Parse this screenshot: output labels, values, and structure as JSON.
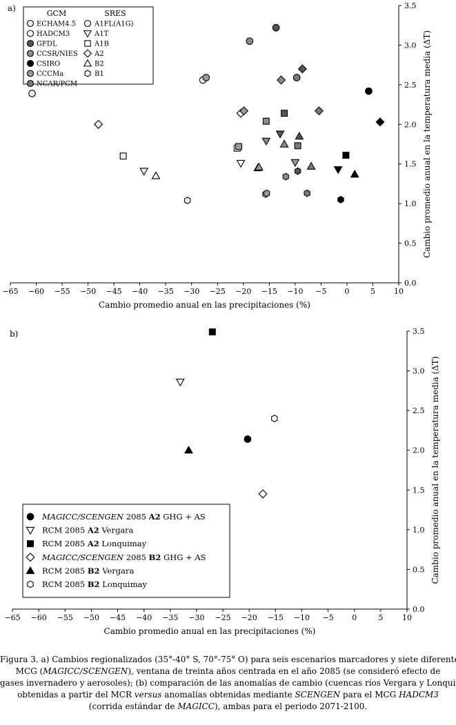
{
  "chart_data": [
    {
      "type": "scatter",
      "panel_label": "a)",
      "xlabel": "Cambio promedio anual en las precipitaciones (%)",
      "ylabel": "Cambio promedio anual en la temperatura media (ΔT)",
      "xlim": [
        -65,
        10
      ],
      "ylim": [
        0,
        3.5
      ],
      "xticks": [
        "−65",
        "−60",
        "−55",
        "−50",
        "−45",
        "−40",
        "−35",
        "−30",
        "−25",
        "−20",
        "−15",
        "−10",
        "−5",
        "0",
        "5",
        "10"
      ],
      "yticks": [
        "0.0",
        "0.5",
        "1.0",
        "1.5",
        "2.0",
        "2.5",
        "3.0",
        "3.5"
      ],
      "legend": {
        "gcm_title": "GCM",
        "sres_title": "SRES",
        "gcm": [
          {
            "name": "ECHAM4.5",
            "color": "#eeeeee"
          },
          {
            "name": "HADCM3",
            "color": "#ffffff"
          },
          {
            "name": "GFDL",
            "color": "#555555"
          },
          {
            "name": "CCSR/NIES",
            "color": "#8c8c8c"
          },
          {
            "name": "CSIRO",
            "color": "#000000"
          },
          {
            "name": "CCCMa",
            "color": "#9a9a9a"
          },
          {
            "name": "NCAR/PCM",
            "color": "#7a7a7a"
          }
        ],
        "sres": [
          {
            "name": "A1FL(A1G)",
            "shape": "circle"
          },
          {
            "name": "A1T",
            "shape": "triangle-down"
          },
          {
            "name": "A1B",
            "shape": "square"
          },
          {
            "name": "A2",
            "shape": "diamond"
          },
          {
            "name": "B2",
            "shape": "triangle-up"
          },
          {
            "name": "B1",
            "shape": "hexagon"
          }
        ]
      },
      "series": [
        {
          "name": "ECHAM4.5",
          "points": [
            {
              "x": -60.8,
              "y": 2.39,
              "shape": "circle"
            },
            {
              "x": -39.2,
              "y": 1.41,
              "shape": "triangle-down"
            },
            {
              "x": -43.2,
              "y": 1.6,
              "shape": "square"
            },
            {
              "x": -48.0,
              "y": 2.0,
              "shape": "diamond"
            },
            {
              "x": -36.9,
              "y": 1.35,
              "shape": "triangle-up"
            },
            {
              "x": -30.8,
              "y": 1.04,
              "shape": "hexagon"
            }
          ]
        },
        {
          "name": "HADCM3",
          "points": [
            {
              "x": -27.8,
              "y": 2.56,
              "shape": "circle"
            },
            {
              "x": -20.5,
              "y": 1.51,
              "shape": "triangle-down"
            },
            {
              "x": -21.2,
              "y": 1.7,
              "shape": "square"
            },
            {
              "x": -20.5,
              "y": 2.14,
              "shape": "diamond"
            },
            {
              "x": -17.2,
              "y": 1.45,
              "shape": "triangle-up"
            },
            {
              "x": -15.7,
              "y": 1.12,
              "shape": "hexagon"
            }
          ]
        },
        {
          "name": "GFDL",
          "points": [
            {
              "x": -13.7,
              "y": 3.22,
              "shape": "circle"
            },
            {
              "x": -12.9,
              "y": 1.88,
              "shape": "triangle-down"
            },
            {
              "x": -12.1,
              "y": 2.14,
              "shape": "square"
            },
            {
              "x": -8.6,
              "y": 2.7,
              "shape": "diamond"
            },
            {
              "x": -9.2,
              "y": 1.85,
              "shape": "triangle-up"
            },
            {
              "x": -9.5,
              "y": 1.41,
              "shape": "hexagon"
            }
          ]
        },
        {
          "name": "CCSR/NIES",
          "points": [
            {
              "x": -18.8,
              "y": 3.05,
              "shape": "circle"
            },
            {
              "x": -15.6,
              "y": 1.79,
              "shape": "triangle-down"
            },
            {
              "x": -15.6,
              "y": 2.04,
              "shape": "square"
            },
            {
              "x": -12.7,
              "y": 2.56,
              "shape": "diamond"
            },
            {
              "x": -12.1,
              "y": 1.75,
              "shape": "triangle-up"
            },
            {
              "x": -11.8,
              "y": 1.34,
              "shape": "hexagon"
            }
          ]
        },
        {
          "name": "CSIRO",
          "points": [
            {
              "x": 4.2,
              "y": 2.42,
              "shape": "circle"
            },
            {
              "x": -1.7,
              "y": 1.43,
              "shape": "triangle-down"
            },
            {
              "x": -0.2,
              "y": 1.61,
              "shape": "square"
            },
            {
              "x": 6.4,
              "y": 2.03,
              "shape": "diamond"
            },
            {
              "x": 1.5,
              "y": 1.37,
              "shape": "triangle-up"
            },
            {
              "x": -1.2,
              "y": 1.05,
              "shape": "hexagon"
            }
          ]
        },
        {
          "name": "CCCMa",
          "points": [
            {
              "x": -27.2,
              "y": 2.59,
              "shape": "circle"
            },
            {
              "x": -10.0,
              "y": 1.52,
              "shape": "triangle-down"
            },
            {
              "x": -20.9,
              "y": 1.72,
              "shape": "square"
            },
            {
              "x": -19.9,
              "y": 2.17,
              "shape": "diamond"
            },
            {
              "x": -17.0,
              "y": 1.46,
              "shape": "triangle-up"
            },
            {
              "x": -15.5,
              "y": 1.13,
              "shape": "hexagon"
            }
          ]
        },
        {
          "name": "NCAR/PCM",
          "points": [
            {
              "x": -9.7,
              "y": 2.59,
              "shape": "circle"
            },
            {
              "x": -6.9,
              "y": 1.47,
              "shape": "triangle-up"
            },
            {
              "x": -9.5,
              "y": 1.73,
              "shape": "square"
            },
            {
              "x": -5.4,
              "y": 2.17,
              "shape": "diamond"
            },
            {
              "x": -7.7,
              "y": 1.13,
              "shape": "hexagon"
            }
          ]
        }
      ]
    },
    {
      "type": "scatter",
      "panel_label": "b)",
      "xlabel": "Cambio promedio anual en las precipitaciones (%)",
      "ylabel": "Cambio promedio anual en la temperatura media (ΔT)",
      "xlim": [
        -65,
        10
      ],
      "ylim": [
        0,
        3.5
      ],
      "xticks": [
        "−65",
        "−60",
        "−55",
        "−50",
        "−45",
        "−40",
        "−35",
        "−30",
        "−25",
        "−20",
        "−15",
        "−10",
        "−5",
        "0",
        "5",
        "10"
      ],
      "yticks": [
        "0.0",
        "0.5",
        "1.0",
        "1.5",
        "2.0",
        "2.5",
        "3.0",
        "3.5"
      ],
      "legend_position": "bottom-left",
      "series": [
        {
          "name": "MAGICC/SCENGEN 2085 A2 GHG + AS",
          "label_parts": [
            {
              "t": "MAGICC/SCENGEN",
              "s": "i"
            },
            {
              "t": " 2085 "
            },
            {
              "t": "A2",
              "s": "b"
            },
            {
              "t": " GHG + AS"
            }
          ],
          "shape": "circle",
          "fill": "#000000",
          "points": [
            {
              "x": -20.3,
              "y": 2.14
            }
          ]
        },
        {
          "name": "RCM 2085 A2 Vergara",
          "label_parts": [
            {
              "t": "RCM 2085 "
            },
            {
              "t": "A2",
              "s": "b"
            },
            {
              "t": " Vergara"
            }
          ],
          "shape": "triangle-down",
          "fill": "#ffffff",
          "points": [
            {
              "x": -33.1,
              "y": 2.86
            }
          ]
        },
        {
          "name": "RCM 2085 A2 Lonquimay",
          "label_parts": [
            {
              "t": "RCM 2085 "
            },
            {
              "t": "A2",
              "s": "b"
            },
            {
              "t": " Lonquimay"
            }
          ],
          "shape": "square",
          "fill": "#000000",
          "points": [
            {
              "x": -27.0,
              "y": 3.49
            }
          ]
        },
        {
          "name": "MAGICC/SCENGEN 2085 B2 GHG + AS",
          "label_parts": [
            {
              "t": "MAGICC/SCENGEN",
              "s": "i"
            },
            {
              "t": " 2085 "
            },
            {
              "t": "B2",
              "s": "b"
            },
            {
              "t": " GHG + AS"
            }
          ],
          "shape": "diamond",
          "fill": "#ffffff",
          "points": [
            {
              "x": -17.4,
              "y": 1.45
            }
          ]
        },
        {
          "name": "RCM 2085 B2 Vergara",
          "label_parts": [
            {
              "t": "RCM 2085 "
            },
            {
              "t": "B2",
              "s": "b"
            },
            {
              "t": " Vergara"
            }
          ],
          "shape": "triangle-up",
          "fill": "#000000",
          "points": [
            {
              "x": -31.5,
              "y": 2.0
            }
          ]
        },
        {
          "name": "RCM 2085 B2 Lonquimay",
          "label_parts": [
            {
              "t": "RCM 2085 "
            },
            {
              "t": "B2",
              "s": "b"
            },
            {
              "t": " Lonquimay"
            }
          ],
          "shape": "hexagon",
          "fill": "#ffffff",
          "points": [
            {
              "x": -15.2,
              "y": 2.4
            }
          ]
        }
      ]
    }
  ],
  "caption": {
    "line1": "Figura 3. a) Cambios regionalizados (35°-40° S, 70°-75° O) para seis escenarios marcadores y siete diferentes",
    "line2_parts": [
      {
        "t": "MCG ("
      },
      {
        "t": "MAGICC/SCENGEN",
        "s": "i"
      },
      {
        "t": "), ventana de treinta años centrada en el año 2085 (se consideró efecto de"
      }
    ],
    "line3": "gases invernadero y aerosoles); (b) comparación de las anomalías de cambio (cuencas ríos Vergara y Lonquimay)",
    "line4_parts": [
      {
        "t": "obtenidas a partir del MCR "
      },
      {
        "t": "versus",
        "s": "i"
      },
      {
        "t": " anomalías obtenidas mediante "
      },
      {
        "t": "SCENGEN",
        "s": "i"
      },
      {
        "t": " para el MCG "
      },
      {
        "t": "HADCM3",
        "s": "i"
      }
    ],
    "line5_parts": [
      {
        "t": "(corrida estándar de "
      },
      {
        "t": "MAGICC",
        "s": "i"
      },
      {
        "t": "), ambas para el periodo 2071-2100."
      }
    ]
  }
}
